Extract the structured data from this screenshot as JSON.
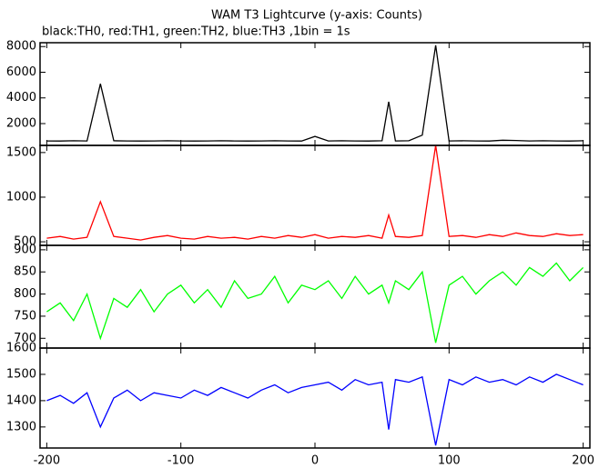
{
  "chart_data": [
    {
      "type": "line",
      "title": "WAM T3 Lightcurve (y-axis: Counts)",
      "subtitle": "black:TH0, red:TH1, green:TH2, blue:TH3 ,1bin = 1s",
      "x": [
        -200,
        -190,
        -180,
        -170,
        -160,
        -150,
        -140,
        -130,
        -120,
        -110,
        -100,
        -90,
        -80,
        -70,
        -60,
        -50,
        -40,
        -30,
        -20,
        -10,
        0,
        10,
        20,
        30,
        40,
        50,
        55,
        60,
        70,
        80,
        90,
        100,
        110,
        120,
        130,
        140,
        150,
        160,
        170,
        180,
        190,
        200
      ],
      "series": [
        {
          "color": "#000000",
          "values": [
            650,
            640,
            660,
            650,
            5100,
            660,
            650,
            640,
            650,
            660,
            650,
            640,
            650,
            660,
            650,
            640,
            650,
            660,
            650,
            640,
            1000,
            650,
            660,
            650,
            640,
            660,
            3700,
            650,
            660,
            1100,
            8100,
            650,
            660,
            650,
            640,
            700,
            680,
            650,
            660,
            650,
            640,
            660
          ]
        }
      ],
      "xlim": [
        -205,
        205
      ],
      "ylim": [
        300,
        8300
      ],
      "yticks": [
        2000,
        4000,
        6000,
        8000
      ]
    },
    {
      "type": "line",
      "x": [
        -200,
        -190,
        -180,
        -170,
        -160,
        -150,
        -140,
        -130,
        -120,
        -110,
        -100,
        -90,
        -80,
        -70,
        -60,
        -50,
        -40,
        -30,
        -20,
        -10,
        0,
        10,
        20,
        30,
        40,
        50,
        55,
        60,
        70,
        80,
        90,
        100,
        110,
        120,
        130,
        140,
        150,
        160,
        170,
        180,
        190,
        200
      ],
      "series": [
        {
          "color": "#ff0000",
          "values": [
            540,
            560,
            530,
            550,
            950,
            560,
            540,
            520,
            550,
            570,
            540,
            530,
            560,
            540,
            550,
            530,
            560,
            540,
            570,
            550,
            580,
            540,
            560,
            550,
            570,
            540,
            800,
            560,
            550,
            570,
            1580,
            560,
            570,
            550,
            580,
            560,
            600,
            570,
            560,
            590,
            570,
            580
          ]
        }
      ],
      "xlim": [
        -205,
        205
      ],
      "ylim": [
        460,
        1580
      ],
      "yticks": [
        500,
        1000,
        1500
      ]
    },
    {
      "type": "line",
      "x": [
        -200,
        -190,
        -180,
        -170,
        -160,
        -150,
        -140,
        -130,
        -120,
        -110,
        -100,
        -90,
        -80,
        -70,
        -60,
        -50,
        -40,
        -30,
        -20,
        -10,
        0,
        10,
        20,
        30,
        40,
        50,
        55,
        60,
        70,
        80,
        90,
        100,
        110,
        120,
        130,
        140,
        150,
        160,
        170,
        180,
        190,
        200
      ],
      "series": [
        {
          "color": "#00ff00",
          "values": [
            760,
            780,
            740,
            800,
            700,
            790,
            770,
            810,
            760,
            800,
            820,
            780,
            810,
            770,
            830,
            790,
            800,
            840,
            780,
            820,
            810,
            830,
            790,
            840,
            800,
            820,
            780,
            830,
            810,
            850,
            690,
            820,
            840,
            800,
            830,
            850,
            820,
            860,
            840,
            870,
            830,
            860
          ]
        }
      ],
      "xlim": [
        -205,
        205
      ],
      "ylim": [
        678,
        910
      ],
      "yticks": [
        700,
        750,
        800,
        850,
        900
      ]
    },
    {
      "type": "line",
      "x": [
        -200,
        -190,
        -180,
        -170,
        -160,
        -150,
        -140,
        -130,
        -120,
        -110,
        -100,
        -90,
        -80,
        -70,
        -60,
        -50,
        -40,
        -30,
        -20,
        -10,
        0,
        10,
        20,
        30,
        40,
        50,
        55,
        60,
        70,
        80,
        90,
        100,
        110,
        120,
        130,
        140,
        150,
        160,
        170,
        180,
        190,
        200
      ],
      "series": [
        {
          "color": "#0000ff",
          "values": [
            1400,
            1420,
            1390,
            1430,
            1300,
            1410,
            1440,
            1400,
            1430,
            1420,
            1410,
            1440,
            1420,
            1450,
            1430,
            1410,
            1440,
            1460,
            1430,
            1450,
            1460,
            1470,
            1440,
            1480,
            1460,
            1470,
            1290,
            1480,
            1470,
            1490,
            1230,
            1480,
            1460,
            1490,
            1470,
            1480,
            1460,
            1490,
            1470,
            1500,
            1480,
            1460
          ]
        }
      ],
      "xlim": [
        -205,
        205
      ],
      "ylim": [
        1220,
        1600
      ],
      "yticks": [
        1300,
        1400,
        1500,
        1600
      ],
      "xticks": [
        -200,
        -100,
        0,
        100,
        200
      ]
    }
  ]
}
